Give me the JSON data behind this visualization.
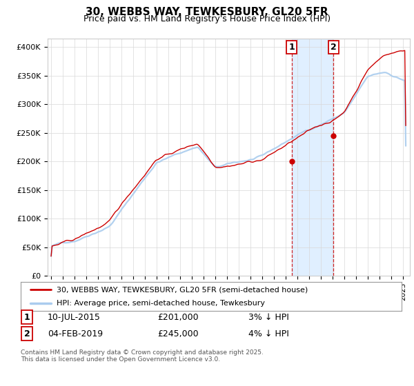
{
  "title": "30, WEBBS WAY, TEWKESBURY, GL20 5FR",
  "subtitle": "Price paid vs. HM Land Registry's House Price Index (HPI)",
  "ylabel_ticks": [
    "£0",
    "£50K",
    "£100K",
    "£150K",
    "£200K",
    "£250K",
    "£300K",
    "£350K",
    "£400K"
  ],
  "ytick_values": [
    0,
    50000,
    100000,
    150000,
    200000,
    250000,
    300000,
    350000,
    400000
  ],
  "ylim": [
    0,
    415000
  ],
  "xlim_start": 1994.7,
  "xlim_end": 2025.6,
  "hpi_color": "#aaccee",
  "price_color": "#cc0000",
  "marker1_date": 2015.53,
  "marker1_price": 201000,
  "marker2_date": 2019.09,
  "marker2_price": 245000,
  "shade_color": "#ddeeff",
  "vline_color": "#cc0000",
  "legend_label1": "30, WEBBS WAY, TEWKESBURY, GL20 5FR (semi-detached house)",
  "legend_label2": "HPI: Average price, semi-detached house, Tewkesbury",
  "table_row1": [
    "1",
    "10-JUL-2015",
    "£201,000",
    "3% ↓ HPI"
  ],
  "table_row2": [
    "2",
    "04-FEB-2019",
    "£245,000",
    "4% ↓ HPI"
  ],
  "footnote": "Contains HM Land Registry data © Crown copyright and database right 2025.\nThis data is licensed under the Open Government Licence v3.0.",
  "background_color": "#ffffff",
  "plot_bg_color": "#ffffff"
}
